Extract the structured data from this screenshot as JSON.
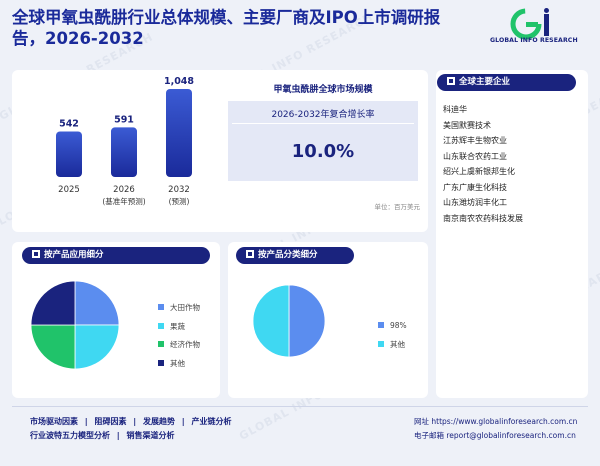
{
  "header": {
    "title_line1": "全球甲氧虫酰肼行业总体规模、主要厂商及IPO上市调研报",
    "title_line2": "告，2026-2032",
    "logo_text": "GLOBAL INFO RESEARCH",
    "brand_color": "#1a237e"
  },
  "watermark": "GLOBAL INFO RESEARCH",
  "market": {
    "title": "甲氧虫酰肼全球市场规模",
    "cagr_label": "2026-2032年复合增长率",
    "cagr_value": "10.0%",
    "unit": "单位：百万美元"
  },
  "companies": {
    "title": "全球主要企业",
    "items": [
      "科迪华",
      "美国默赛技术",
      "江苏辉丰生物农业",
      "山东联合农药工业",
      "绍兴上虞新银邦生化",
      "广东广康生化科技",
      "山东潍坊润丰化工",
      "南京南农农药科技发展"
    ]
  },
  "app_section": {
    "title": "按产品应用细分"
  },
  "type_section": {
    "title": "按产品分类细分"
  },
  "chart_data": [
    {
      "type": "bar",
      "categories": [
        "2025",
        "2026",
        "2032"
      ],
      "category_notes": [
        "",
        "(基准年预测)",
        "(预测)"
      ],
      "values": [
        542,
        591,
        1048
      ],
      "value_labels": [
        "542",
        "591",
        "1,048"
      ],
      "color": "#1a2a9a"
    },
    {
      "type": "pie",
      "labels": [
        "大田作物",
        "果蔬",
        "经济作物",
        "其他"
      ],
      "values": [
        25,
        25,
        25,
        25
      ],
      "colors": [
        "#5b8def",
        "#3fd8f2",
        "#20c36a",
        "#1a237e"
      ]
    },
    {
      "type": "pie",
      "labels": [
        "98%",
        "其他"
      ],
      "values": [
        50,
        50
      ],
      "colors": [
        "#5b8def",
        "#3fd8f2"
      ]
    }
  ],
  "footer": {
    "links_row1": [
      "市场驱动因素",
      "阻碍因素",
      "发展趋势",
      "产业链分析"
    ],
    "links_row2": [
      "行业波特五力模型分析",
      "销售渠道分析"
    ],
    "sep": "|",
    "website": "网址 https://www.globalinforesearch.com.cn",
    "email": "电子邮箱 report@globalinforesearch.com.cn"
  }
}
